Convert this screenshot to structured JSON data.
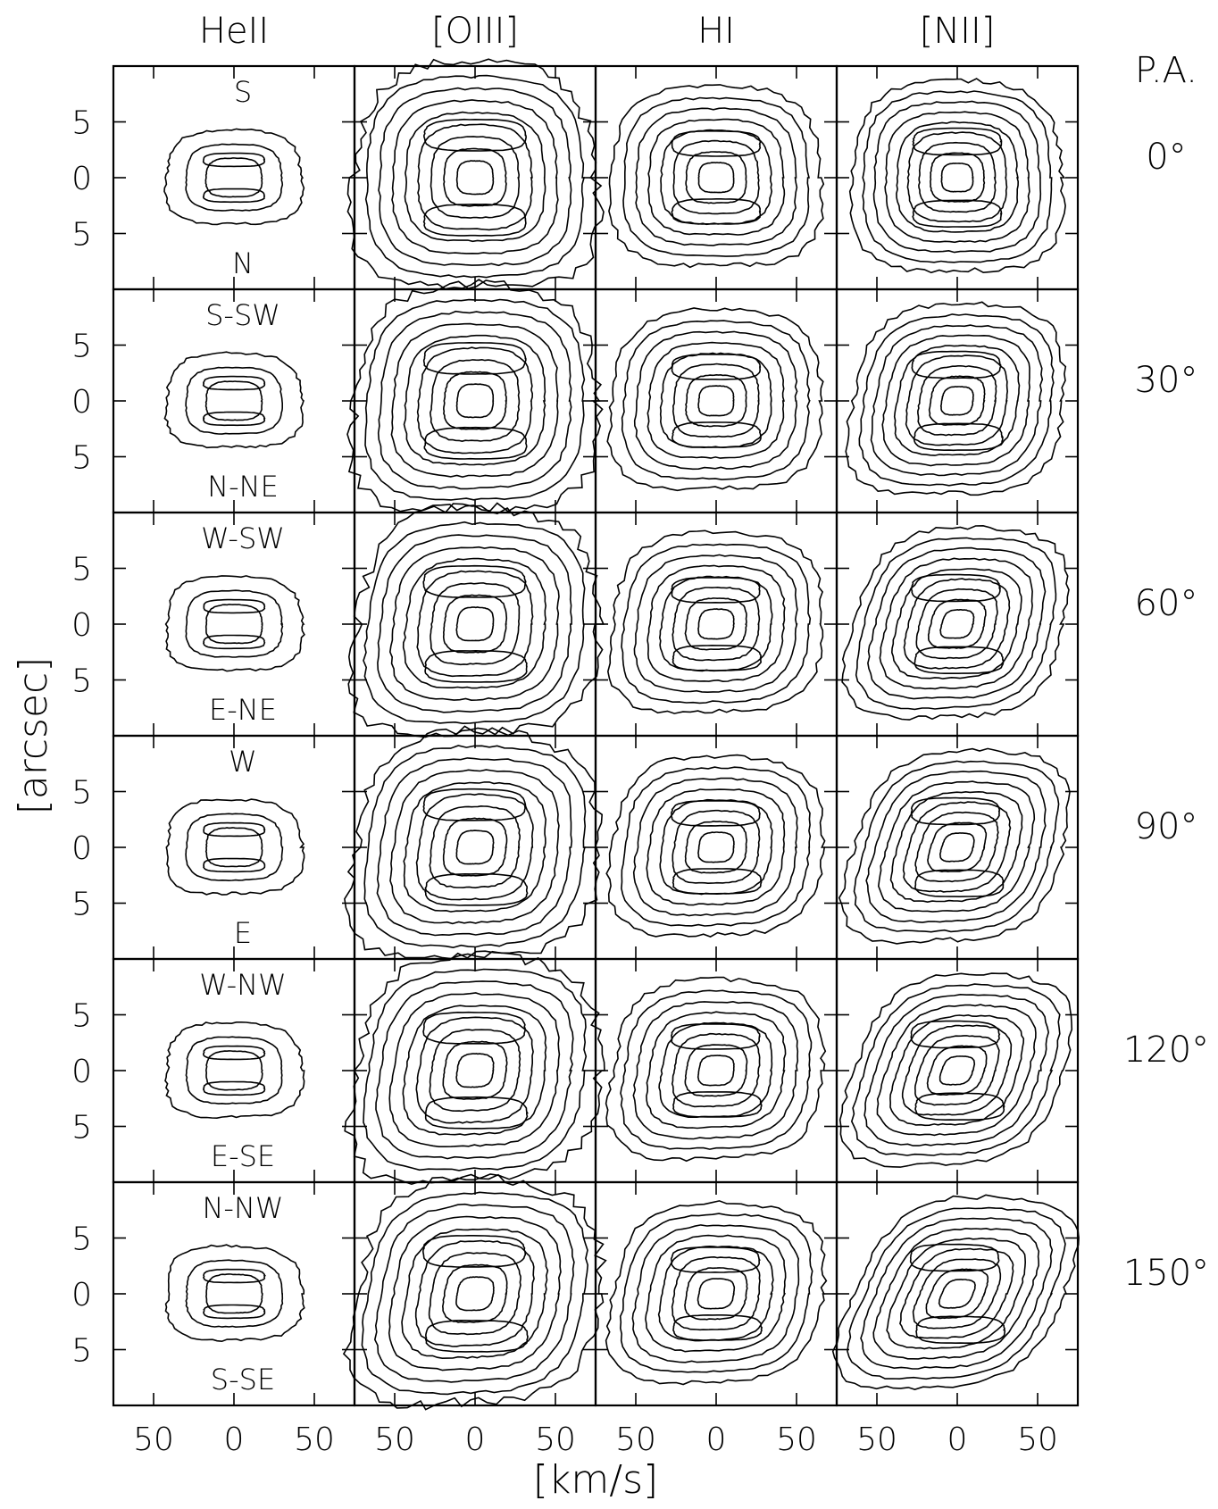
{
  "chart_data": {
    "type": "contour",
    "rows_variable": "P.A.",
    "columns": [
      "HeII",
      "[OIII]",
      "HI",
      "[NII]"
    ],
    "pa_header": "P.A.",
    "rows": [
      {
        "pa": "0°",
        "top": "S",
        "bottom": "N"
      },
      {
        "pa": "30°",
        "top": "S-SW",
        "bottom": "N-NE"
      },
      {
        "pa": "60°",
        "top": "W-SW",
        "bottom": "E-NE"
      },
      {
        "pa": "90°",
        "top": "W",
        "bottom": "E"
      },
      {
        "pa": "120°",
        "top": "W-NW",
        "bottom": "E-SE"
      },
      {
        "pa": "150°",
        "top": "N-NW",
        "bottom": "S-SE"
      }
    ],
    "xlabel": "[km/s]",
    "ylabel": "[arcsec]",
    "xticks": [
      "50",
      "0",
      "50"
    ],
    "xtick_values": [
      -50,
      0,
      50
    ],
    "yticks": [
      "5",
      "0",
      "5"
    ],
    "ytick_values": [
      5,
      0,
      -5
    ],
    "xlim": [
      -75,
      75
    ],
    "ylim": [
      -10,
      10
    ],
    "column_extent": {
      "HeII": {
        "half_width_kms": 42,
        "half_height_arcsec": 4.2,
        "levels": 3
      },
      "[OIII]": {
        "half_width_kms": 75,
        "half_height_arcsec": 10,
        "levels": 9
      },
      "HI": {
        "half_width_kms": 65,
        "half_height_arcsec": 8,
        "levels": 8
      },
      "[NII]": {
        "half_width_kms": 65,
        "half_height_arcsec": 8.5,
        "levels": 9
      }
    }
  }
}
